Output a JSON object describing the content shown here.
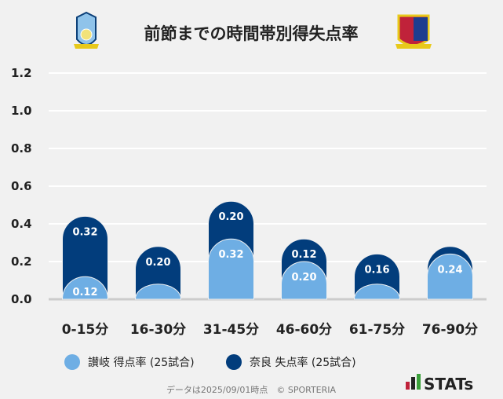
{
  "chart_data": {
    "type": "bar",
    "title": "前節までの時間帯別得失点率",
    "categories": [
      "0-15分",
      "16-30分",
      "31-45分",
      "46-60分",
      "61-75分",
      "76-90分"
    ],
    "series": [
      {
        "name": "讃岐 得点率 (25試合)",
        "color": "#6eaee4",
        "values": [
          0.12,
          0.08,
          0.32,
          0.2,
          0.08,
          0.24
        ],
        "labels": [
          "0.12",
          "",
          "0.32",
          "0.20",
          "",
          "0.24"
        ]
      },
      {
        "name": "奈良 失点率 (25試合)",
        "color": "#023d7c",
        "values": [
          0.32,
          0.2,
          0.2,
          0.12,
          0.16,
          0.04
        ],
        "labels": [
          "0.32",
          "0.20",
          "0.20",
          "0.12",
          "0.16",
          ""
        ]
      }
    ],
    "stacked": true,
    "yticks": [
      "0.0",
      "0.2",
      "0.4",
      "0.6",
      "0.8",
      "1.0",
      "1.2"
    ],
    "ylim": [
      0,
      1.2
    ],
    "grid": true,
    "legend": "bottom"
  },
  "footer": "データは2025/09/01時点　© SPORTERIA",
  "brand": "STATs"
}
